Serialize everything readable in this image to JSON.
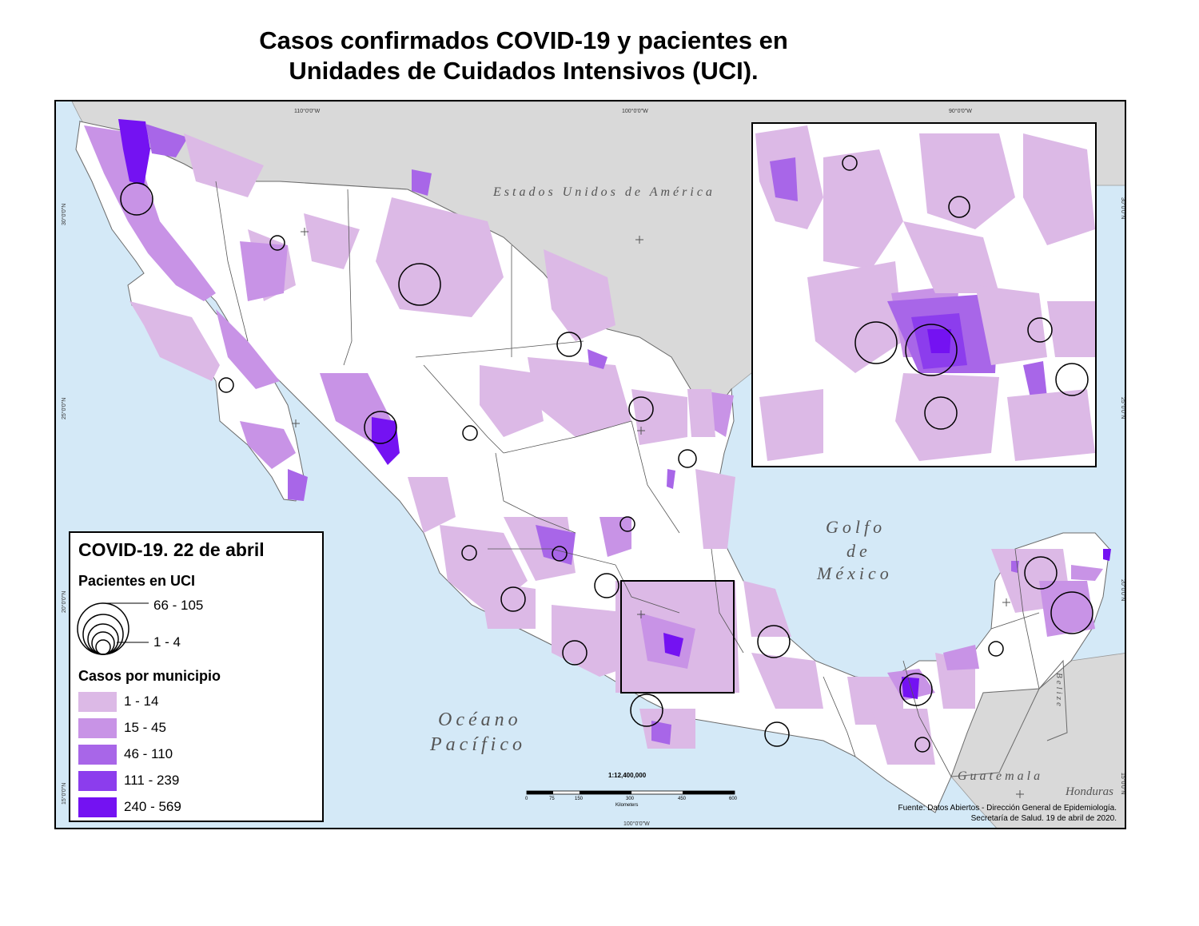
{
  "title": {
    "line1": "Casos confirmados COVID-19 y pacientes en",
    "line2": "Unidades de Cuidados Intensivos (UCI)."
  },
  "map_labels": {
    "usa": "Estados Unidos de América",
    "gulf": [
      "Golfo",
      "de",
      "México"
    ],
    "pacific": [
      "Océano",
      "Pacífico"
    ],
    "guatemala": "Guatemala",
    "honduras": "Honduras",
    "belize": "Belize"
  },
  "graticule": {
    "top": [
      "110°0'0\"W",
      "100°0'0\"W",
      "90°0'0\"W"
    ],
    "left": [
      "30°0'0\"N",
      "25°0'0\"N",
      "20°0'0\"N",
      "15°0'0\"N"
    ],
    "right": [
      "30°0'0\"N",
      "25°0'0\"N",
      "20°0'0\"N",
      "15°0'0\"N"
    ],
    "bottom": "100°0'0\"W"
  },
  "legend": {
    "title": "COVID-19. 22 de abril",
    "icu_title": "Pacientes en UCI",
    "icu_max": "66 - 105",
    "icu_min": "1 - 4",
    "cases_title": "Casos por municipio",
    "classes": [
      {
        "label": "1 - 14",
        "color": "#dcb9e6"
      },
      {
        "label": "15 - 45",
        "color": "#c893e6"
      },
      {
        "label": "46 - 110",
        "color": "#a866e8"
      },
      {
        "label": "111 - 239",
        "color": "#8c3ded"
      },
      {
        "label": "240 - 569",
        "color": "#7412f2"
      }
    ]
  },
  "scale": {
    "ratio": "1:12,400,000",
    "ticks": [
      "0",
      "75",
      "150",
      "300",
      "450",
      "600"
    ],
    "unit": "Kilometers"
  },
  "source": {
    "line1": "Fuente: Datos Abiertos - Dirección General de Epidemiología.",
    "line2": "Secretaría de Salud. 19 de abril de 2020."
  },
  "colors": {
    "sea": "#d4e9f7",
    "land_other": "#d9d9d9",
    "mexico_base": "#ffffff"
  }
}
